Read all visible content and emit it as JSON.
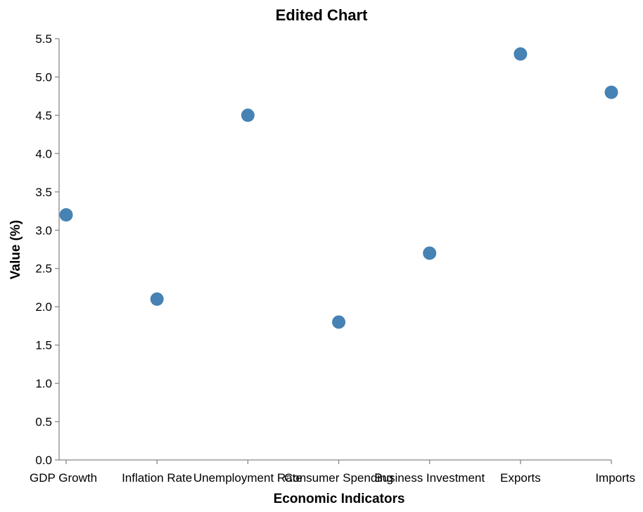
{
  "chart_data": {
    "type": "scatter",
    "title": "Edited Chart",
    "xlabel": "Economic Indicators",
    "ylabel": "Value (%)",
    "categories": [
      "GDP Growth",
      "Inflation Rate",
      "Unemployment Rate",
      "Consumer Spending",
      "Business Investment",
      "Exports",
      "Imports"
    ],
    "values": [
      3.2,
      2.1,
      4.5,
      1.8,
      2.7,
      5.3,
      4.8
    ],
    "ylim": [
      0,
      5.5
    ],
    "yticks": [
      "0.0",
      "0.5",
      "1.0",
      "1.5",
      "2.0",
      "2.5",
      "3.0",
      "3.5",
      "4.0",
      "4.5",
      "5.0",
      "5.5"
    ],
    "grid": false,
    "point_color": "#4682b4"
  }
}
